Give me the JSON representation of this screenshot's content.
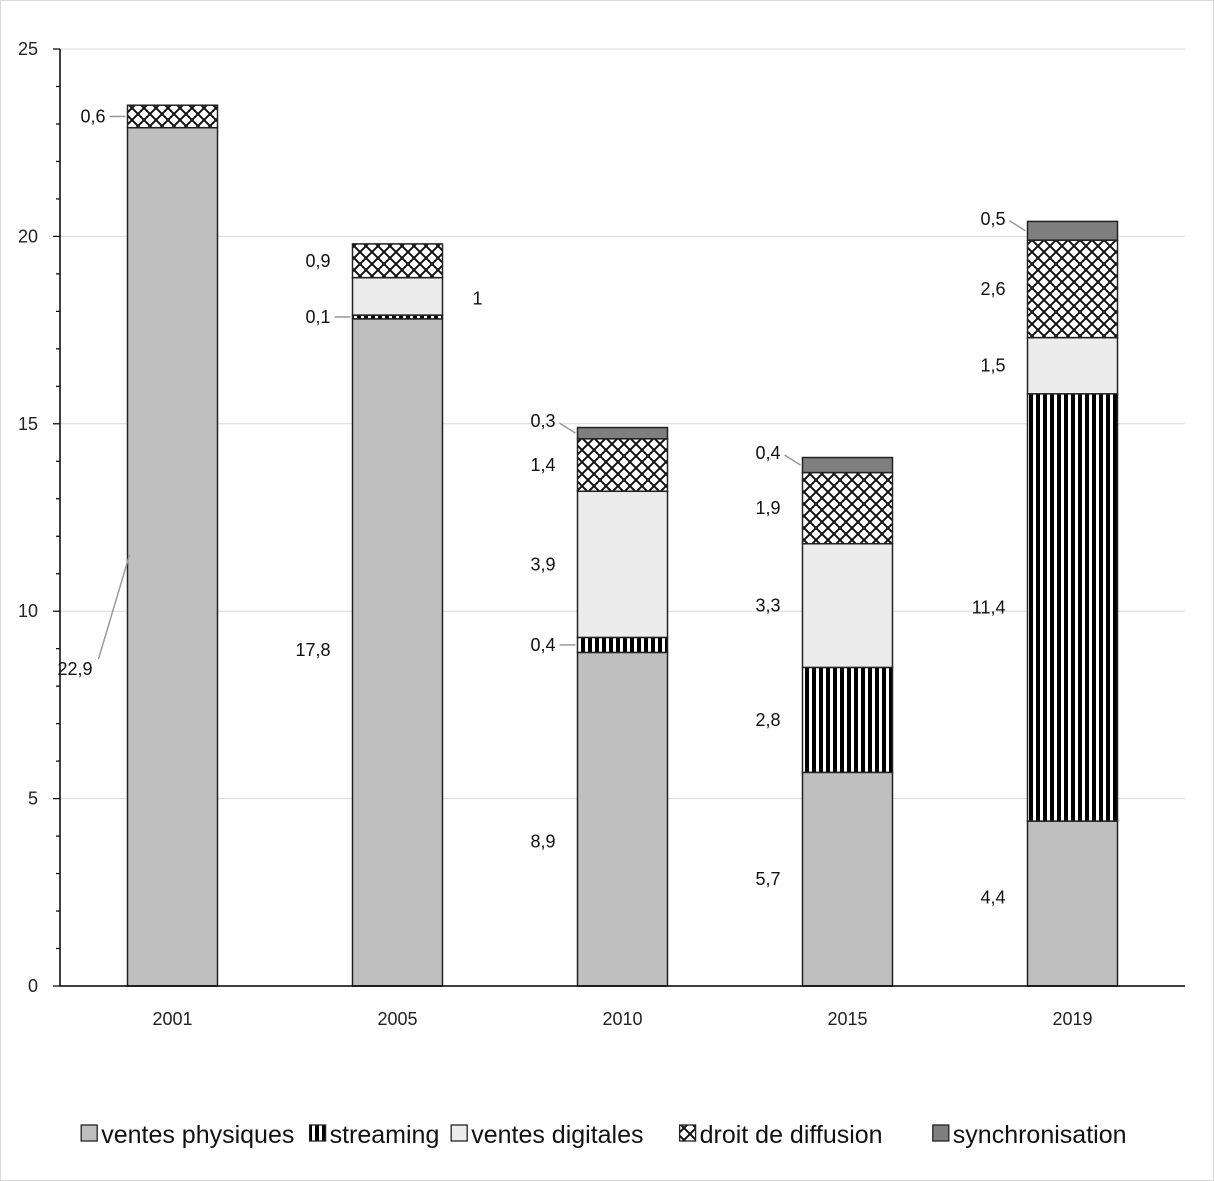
{
  "chart_data": {
    "type": "bar",
    "stacked": true,
    "categories": [
      "2001",
      "2005",
      "2010",
      "2015",
      "2019"
    ],
    "series": [
      {
        "name": "ventes physiques",
        "values": [
          22.9,
          17.8,
          8.9,
          5.7,
          4.4
        ],
        "color": "#bfbfbf",
        "pattern": "solid"
      },
      {
        "name": "streaming",
        "values": [
          0,
          0.1,
          0.4,
          2.8,
          11.4
        ],
        "color": "#000000",
        "pattern": "vertical-stripes"
      },
      {
        "name": "ventes digitales",
        "values": [
          0,
          1,
          3.9,
          3.3,
          1.5
        ],
        "color": "#ececec",
        "pattern": "solid"
      },
      {
        "name": "droit de diffusion",
        "values": [
          0.6,
          0.9,
          1.4,
          1.9,
          2.6
        ],
        "color": "#000000",
        "pattern": "crosshatch"
      },
      {
        "name": "synchronisation",
        "values": [
          0,
          0,
          0.3,
          0.4,
          0.5
        ],
        "color": "#7f7f7f",
        "pattern": "solid"
      }
    ],
    "data_labels": [
      [
        "22,9",
        "",
        "",
        "0,6",
        ""
      ],
      [
        "17,8",
        "0,1",
        "1",
        "0,9",
        ""
      ],
      [
        "8,9",
        "0,4",
        "3,9",
        "1,4",
        "0,3"
      ],
      [
        "5,7",
        "2,8",
        "3,3",
        "1,9",
        "0,4"
      ],
      [
        "4,4",
        "11,4",
        "1,5",
        "2,6",
        "0,5"
      ]
    ],
    "title": "",
    "xlabel": "",
    "ylabel": "",
    "ylim": [
      0,
      25
    ],
    "yticks": [
      0,
      5,
      10,
      15,
      20,
      25
    ],
    "grid": true,
    "legend_position": "bottom"
  }
}
